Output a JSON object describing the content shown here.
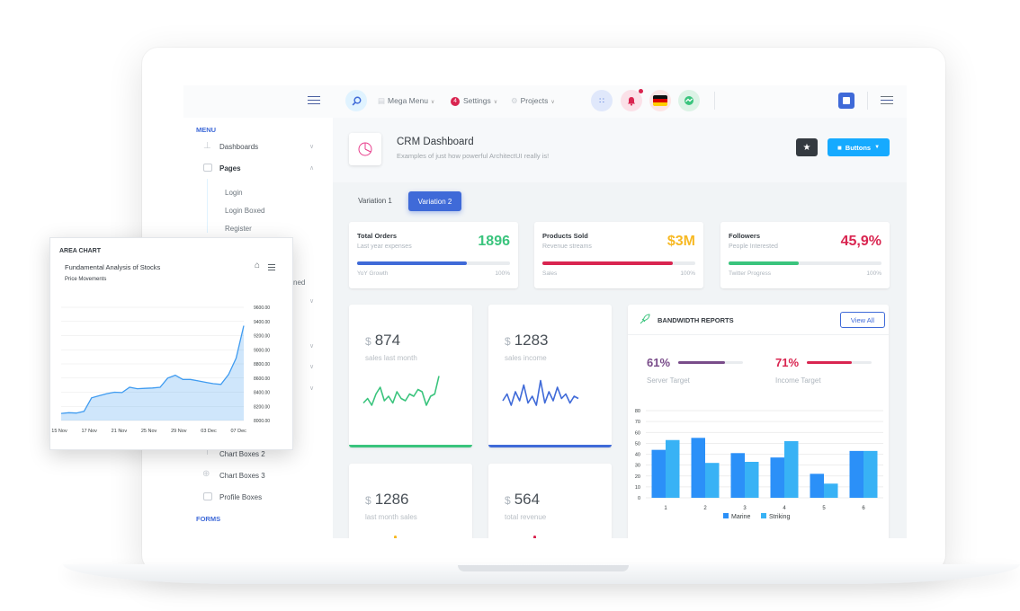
{
  "header": {
    "mega_menu": "Mega Menu",
    "settings": "Settings",
    "settings_badge": "4",
    "projects": "Projects"
  },
  "sidebar": {
    "section_menu": "MENU",
    "dashboards": "Dashboards",
    "pages": "Pages",
    "pages_sub": [
      "Login",
      "Login Boxed",
      "Register"
    ],
    "partial_text": "ned",
    "items_lower": [
      "Chart Boxes 2",
      "Chart Boxes 3",
      "Profile Boxes"
    ],
    "section_forms": "FORMS"
  },
  "page_title": {
    "title": "CRM Dashboard",
    "subtitle": "Examples of just how powerful ArchitectUI really is!",
    "buttons_label": "Buttons"
  },
  "tabs": [
    "Variation 1",
    "Variation 2"
  ],
  "active_tab": 1,
  "widgets": [
    {
      "title": "Total Orders",
      "subtitle": "Last year expenses",
      "value": "1896",
      "color": "#3ac47d",
      "bar_color": "#3f6ad8",
      "progress": 0.72,
      "left_label": "YoY Growth",
      "right_label": "100%"
    },
    {
      "title": "Products Sold",
      "subtitle": "Revenue streams",
      "value": "$3M",
      "color": "#f7b924",
      "bar_color": "#d92550",
      "progress": 0.85,
      "left_label": "Sales",
      "right_label": "100%"
    },
    {
      "title": "Followers",
      "subtitle": "People Interested",
      "value": "45,9%",
      "color": "#d92550",
      "bar_color": "#3ac47d",
      "progress": 0.46,
      "left_label": "Twitter Progress",
      "right_label": "100%"
    }
  ],
  "stats": [
    {
      "currency": "$",
      "value": "874",
      "label": "sales last month",
      "color": "#3ac47d",
      "spark": [
        0.35,
        0.45,
        0.3,
        0.55,
        0.7,
        0.4,
        0.5,
        0.35,
        0.6,
        0.45,
        0.4,
        0.55,
        0.5,
        0.65,
        0.6,
        0.3,
        0.5,
        0.55,
        0.95
      ]
    },
    {
      "currency": "$",
      "value": "1283",
      "label": "sales income",
      "color": "#3f6ad8",
      "spark": [
        0.4,
        0.55,
        0.3,
        0.6,
        0.4,
        0.75,
        0.35,
        0.5,
        0.3,
        0.85,
        0.35,
        0.6,
        0.4,
        0.7,
        0.45,
        0.55,
        0.35,
        0.5,
        0.45
      ]
    },
    {
      "currency": "$",
      "value": "1286",
      "label": "last month sales",
      "color": "#f7b924"
    },
    {
      "currency": "$",
      "value": "564",
      "label": "total revenue",
      "color": "#d92550"
    }
  ],
  "bandwidth": {
    "title": "BANDWIDTH REPORTS",
    "view_all": "View All",
    "targets": [
      {
        "value": "61%",
        "label": "Server Target",
        "color": "#794c8a",
        "progress": 0.72
      },
      {
        "value": "71%",
        "label": "Income Target",
        "color": "#d92550",
        "progress": 0.7
      }
    ]
  },
  "area_chart": {
    "section": "AREA CHART",
    "title": "Fundamental Analysis of Stocks",
    "subtitle": "Price Movements"
  },
  "chart_data": [
    {
      "type": "bar",
      "categories": [
        "1",
        "2",
        "3",
        "4",
        "5",
        "6"
      ],
      "series": [
        {
          "name": "Marine",
          "values": [
            44,
            55,
            41,
            37,
            22,
            43
          ],
          "color": "#2b90f8"
        },
        {
          "name": "Striking",
          "values": [
            53,
            32,
            33,
            52,
            13,
            43
          ],
          "color": "#38b2f5"
        }
      ],
      "yticks": [
        0,
        10,
        20,
        30,
        40,
        50,
        60,
        70,
        80
      ],
      "ylim": [
        0,
        80
      ],
      "legend": "bottom",
      "grid": true
    },
    {
      "type": "area",
      "title": "Fundamental Analysis of Stocks",
      "subtitle": "Price Movements",
      "xticks": [
        "15 Nov",
        "17 Nov",
        "21 Nov",
        "25 Nov",
        "29 Nov",
        "03 Dec",
        "07 Dec"
      ],
      "yticks": [
        "8000.00",
        "8200.00",
        "8400.00",
        "8600.00",
        "8800.00",
        "9000.00",
        "9200.00",
        "9400.00",
        "9600.00"
      ],
      "ylim": [
        8000,
        9600
      ],
      "values": [
        8100,
        8110,
        8105,
        8130,
        8320,
        8350,
        8380,
        8400,
        8395,
        8470,
        8450,
        8455,
        8460,
        8470,
        8600,
        8640,
        8580,
        8580,
        8560,
        8540,
        8520,
        8510,
        8650,
        8880,
        9340
      ],
      "color": "#3f9bf0",
      "grid": true
    }
  ]
}
